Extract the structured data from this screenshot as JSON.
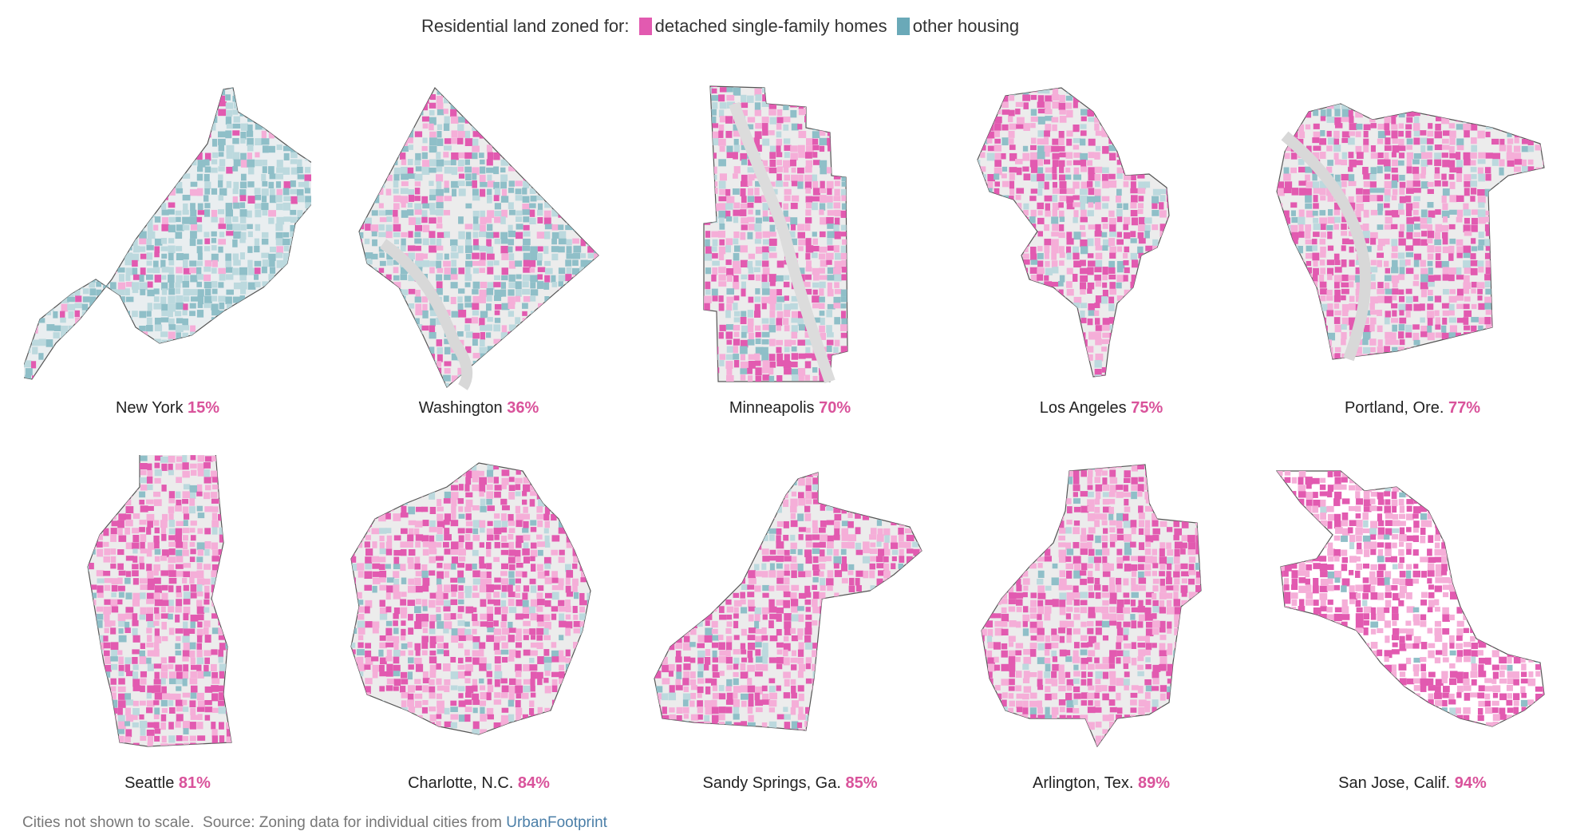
{
  "legend": {
    "prefix": "Residential land zoned for:",
    "items": [
      {
        "label": "detached single-family homes",
        "color": "#e25ab0"
      },
      {
        "label": "other housing",
        "color": "#6aa9b8"
      }
    ]
  },
  "colors": {
    "single_family": "#e25ab0",
    "single_family_light": "#f5aed8",
    "other": "#8fbfc8",
    "other_light": "#bcd9de",
    "roads": "#d9d9d9",
    "outline": "#555555"
  },
  "cities": [
    {
      "name": "New York",
      "pct": "15%",
      "share": 0.15
    },
    {
      "name": "Washington",
      "pct": "36%",
      "share": 0.36
    },
    {
      "name": "Minneapolis",
      "pct": "70%",
      "share": 0.7
    },
    {
      "name": "Los Angeles",
      "pct": "75%",
      "share": 0.75
    },
    {
      "name": "Portland, Ore.",
      "pct": "77%",
      "share": 0.77
    },
    {
      "name": "Seattle",
      "pct": "81%",
      "share": 0.81
    },
    {
      "name": "Charlotte, N.C.",
      "pct": "84%",
      "share": 0.84
    },
    {
      "name": "Sandy Springs, Ga.",
      "pct": "85%",
      "share": 0.85
    },
    {
      "name": "Arlington, Tex.",
      "pct": "89%",
      "share": 0.89
    },
    {
      "name": "San Jose, Calif.",
      "pct": "94%",
      "share": 0.94
    }
  ],
  "footer": {
    "note": "Cities not shown to scale.",
    "source_prefix": "Source: Zoning data for individual cities from",
    "source_link": "UrbanFootprint"
  }
}
